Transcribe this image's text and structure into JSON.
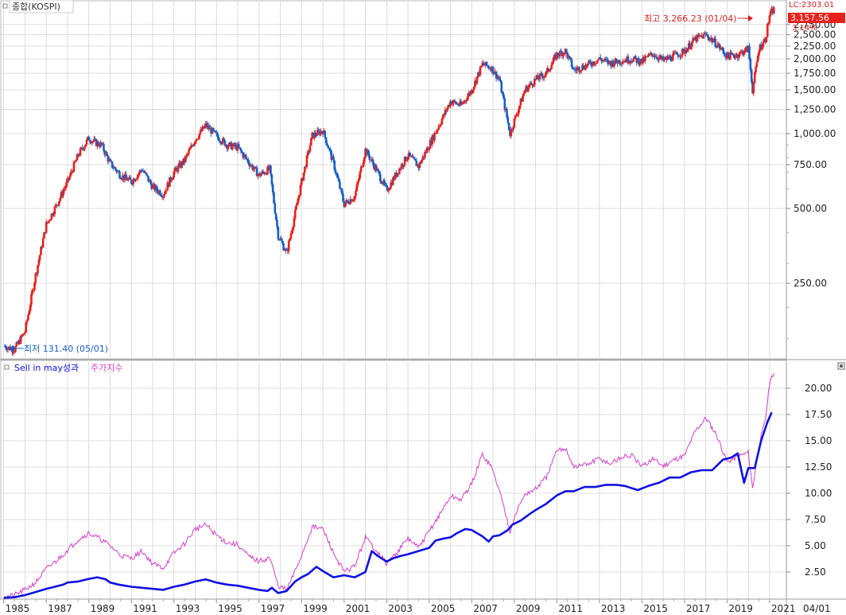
{
  "colors": {
    "up": "#e8211d",
    "down": "#1a5fc4",
    "perf_line": "#1010e0",
    "index_line": "#d040c8",
    "grid": "#d4d4d4",
    "axis_text": "#222222",
    "price_badge": "#e8211d"
  },
  "top_panel": {
    "title_icon": "square-marker-icon",
    "title": "종합(KOSPI)",
    "lc_label": "LC:2303.01",
    "last_price": "3,157.56",
    "last_pct": "3.14%",
    "high_annotation": "최고 3,266.23 (01/04)",
    "low_annotation": "최저 131.40 (05/01)"
  },
  "bottom_panel": {
    "legend_icon": "square-marker-icon",
    "series1_name": "Sell in may성과",
    "series2_name": "주가지수",
    "corner_icon": "small-square-icon"
  },
  "x_labels": [
    "1985",
    "1987",
    "1989",
    "1991",
    "1993",
    "1995",
    "1997",
    "1999",
    "2001",
    "2003",
    "2005",
    "2007",
    "2009",
    "2011",
    "2013",
    "2015",
    "2017",
    "2019",
    "2021",
    "04/01"
  ],
  "chart_data": [
    {
      "type": "candlestick",
      "title": "종합(KOSPI)",
      "scale": "log",
      "y_ticks": [
        "250.00",
        "500.00",
        "750.00",
        "1,000.00",
        "1,250.00",
        "1,500.00",
        "1,750.00",
        "2,000.00",
        "2,250.00",
        "2,500.00",
        "2,750.00"
      ],
      "y_tick_values": [
        250,
        500,
        750,
        1000,
        1250,
        1500,
        1750,
        2000,
        2250,
        2500,
        2750
      ],
      "ylim": [
        125,
        3400
      ],
      "x_tick_labels": [
        "1985",
        "1987",
        "1989",
        "1991",
        "1993",
        "1995",
        "1997",
        "1999",
        "2001",
        "2003",
        "2005",
        "2007",
        "2009",
        "2011",
        "2013",
        "2015",
        "2017",
        "2019",
        "2021",
        "04/01"
      ],
      "series": [
        {
          "name": "종합(KOSPI)",
          "x": [
            1985.0,
            1985.5,
            1986.0,
            1986.5,
            1987.0,
            1987.5,
            1988.0,
            1988.5,
            1989.0,
            1989.3,
            1989.6,
            1990.0,
            1990.5,
            1991.0,
            1991.5,
            1992.0,
            1992.5,
            1993.0,
            1993.5,
            1994.0,
            1994.5,
            1995.0,
            1995.5,
            1996.0,
            1996.5,
            1997.0,
            1997.5,
            1997.9,
            1998.3,
            1998.7,
            1999.0,
            1999.5,
            2000.0,
            2000.5,
            2001.0,
            2001.5,
            2002.0,
            2002.5,
            2003.0,
            2003.5,
            2004.0,
            2004.5,
            2005.0,
            2005.5,
            2006.0,
            2006.5,
            2007.0,
            2007.5,
            2007.9,
            2008.3,
            2008.8,
            2009.0,
            2009.5,
            2010.0,
            2010.5,
            2011.0,
            2011.4,
            2011.8,
            2012.5,
            2013.0,
            2013.5,
            2014.0,
            2014.5,
            2015.0,
            2015.5,
            2016.0,
            2016.5,
            2017.0,
            2017.5,
            2018.0,
            2018.5,
            2019.0,
            2019.5,
            2020.0,
            2020.2,
            2020.5,
            2020.8,
            2021.0,
            2021.2
          ],
          "values": [
            140,
            135,
            160,
            270,
            430,
            520,
            640,
            820,
            960,
            920,
            900,
            760,
            680,
            640,
            720,
            610,
            570,
            700,
            780,
            950,
            1080,
            980,
            900,
            880,
            770,
            680,
            720,
            390,
            330,
            480,
            640,
            980,
            1030,
            760,
            520,
            560,
            860,
            720,
            590,
            700,
            820,
            740,
            900,
            1100,
            1350,
            1300,
            1500,
            1900,
            1850,
            1650,
            1000,
            1130,
            1500,
            1650,
            1750,
            2080,
            2150,
            1800,
            1900,
            2000,
            1920,
            1970,
            2000,
            1950,
            2100,
            1970,
            2050,
            2150,
            2400,
            2500,
            2300,
            2050,
            2080,
            2200,
            1500,
            2200,
            2400,
            3000,
            3157.56
          ]
        }
      ],
      "high": {
        "value": 3266.23,
        "date": "01/04"
      },
      "low": {
        "value": 131.4,
        "date": "05/01"
      }
    },
    {
      "type": "line",
      "y_ticks": [
        "2.50",
        "5.00",
        "7.50",
        "10.00",
        "12.50",
        "15.00",
        "17.50",
        "20.00"
      ],
      "y_tick_values": [
        2.5,
        5,
        7.5,
        10,
        12.5,
        15,
        17.5,
        20
      ],
      "ylim": [
        0,
        22.5
      ],
      "series": [
        {
          "name": "Sell in may성과",
          "x": [
            1985.0,
            1985.5,
            1986.0,
            1986.5,
            1987.0,
            1987.4,
            1987.8,
            1988.0,
            1988.5,
            1988.9,
            1989.4,
            1989.8,
            1990.0,
            1990.4,
            1991.0,
            1991.5,
            1992.0,
            1992.5,
            1993.0,
            1993.5,
            1994.0,
            1994.5,
            1995.0,
            1995.5,
            1996.0,
            1996.5,
            1997.0,
            1997.4,
            1997.6,
            1997.9,
            1998.3,
            1998.7,
            1999.0,
            1999.3,
            1999.7,
            2000.0,
            2000.5,
            2001.0,
            2001.5,
            2002.0,
            2002.3,
            2002.6,
            2003.0,
            2003.3,
            2003.6,
            2004.0,
            2004.5,
            2005.0,
            2005.3,
            2005.7,
            2006.0,
            2006.3,
            2006.7,
            2007.0,
            2007.5,
            2007.8,
            2008.0,
            2008.3,
            2008.7,
            2008.9,
            2009.3,
            2009.7,
            2010.0,
            2010.5,
            2011.0,
            2011.4,
            2011.8,
            2012.3,
            2012.8,
            2013.3,
            2013.8,
            2014.2,
            2014.8,
            2015.3,
            2015.8,
            2016.3,
            2016.8,
            2017.3,
            2017.8,
            2018.3,
            2018.8,
            2019.2,
            2019.5,
            2019.8,
            2020.0,
            2020.3,
            2020.6,
            2020.9,
            2021.1
          ],
          "values": [
            0.05,
            0.1,
            0.3,
            0.6,
            0.9,
            1.1,
            1.3,
            1.5,
            1.6,
            1.8,
            2.0,
            1.8,
            1.5,
            1.3,
            1.1,
            1.0,
            0.9,
            0.8,
            1.1,
            1.3,
            1.6,
            1.8,
            1.5,
            1.3,
            1.2,
            1.0,
            0.8,
            0.7,
            1.0,
            0.5,
            0.7,
            1.6,
            2.0,
            2.3,
            3.0,
            2.6,
            2.0,
            2.2,
            2.0,
            2.5,
            4.5,
            4.0,
            3.5,
            3.8,
            4.0,
            4.2,
            4.5,
            4.8,
            5.5,
            5.7,
            5.8,
            6.2,
            6.6,
            6.5,
            5.9,
            5.4,
            5.9,
            6.0,
            6.5,
            7.0,
            7.4,
            8.0,
            8.4,
            9.0,
            9.8,
            10.2,
            10.2,
            10.6,
            10.6,
            10.8,
            10.8,
            10.7,
            10.3,
            10.7,
            11.0,
            11.5,
            11.5,
            12.0,
            12.2,
            12.2,
            13.2,
            13.4,
            13.8,
            11.0,
            12.4,
            12.4,
            15.0,
            16.8,
            17.7
          ]
        },
        {
          "name": "주가지수",
          "x": [
            1985.0,
            1985.5,
            1986.0,
            1986.5,
            1987.0,
            1987.5,
            1988.0,
            1988.5,
            1989.0,
            1989.5,
            1990.0,
            1990.5,
            1991.0,
            1991.5,
            1992.0,
            1992.5,
            1993.0,
            1993.5,
            1994.0,
            1994.5,
            1995.0,
            1995.5,
            1996.0,
            1996.5,
            1997.0,
            1997.5,
            1997.9,
            1998.3,
            1998.7,
            1999.0,
            1999.5,
            2000.0,
            2000.5,
            2001.0,
            2001.5,
            2002.0,
            2002.5,
            2003.0,
            2003.5,
            2004.0,
            2004.5,
            2005.0,
            2005.5,
            2006.0,
            2006.5,
            2007.0,
            2007.5,
            2007.9,
            2008.3,
            2008.8,
            2009.0,
            2009.5,
            2010.0,
            2010.5,
            2011.0,
            2011.4,
            2011.8,
            2012.5,
            2013.0,
            2013.5,
            2014.0,
            2014.5,
            2015.0,
            2015.5,
            2016.0,
            2016.5,
            2017.0,
            2017.5,
            2018.0,
            2018.5,
            2019.0,
            2019.5,
            2020.0,
            2020.2,
            2020.5,
            2020.8,
            2021.0,
            2021.2
          ],
          "values": [
            0.1,
            0.3,
            0.8,
            1.5,
            2.8,
            3.6,
            4.6,
            5.6,
            6.2,
            5.7,
            5.0,
            4.1,
            3.8,
            4.5,
            3.3,
            2.9,
            4.3,
            5.2,
            6.6,
            7.0,
            6.0,
            5.3,
            5.1,
            4.0,
            3.5,
            3.9,
            1.2,
            0.8,
            2.6,
            4.1,
            6.8,
            6.6,
            4.3,
            2.5,
            3.1,
            5.8,
            4.6,
            3.3,
            4.4,
            5.7,
            4.8,
            6.4,
            8.0,
            9.7,
            9.4,
            10.9,
            13.7,
            12.6,
            10.3,
            6.4,
            7.8,
            9.9,
            10.4,
            11.5,
            14.0,
            14.3,
            12.5,
            12.8,
            13.3,
            12.8,
            13.4,
            13.6,
            12.5,
            13.3,
            12.6,
            13.2,
            13.6,
            15.9,
            17.2,
            15.6,
            13.0,
            13.5,
            13.9,
            10.5,
            14.5,
            17.0,
            20.5,
            21.4
          ]
        }
      ]
    }
  ]
}
